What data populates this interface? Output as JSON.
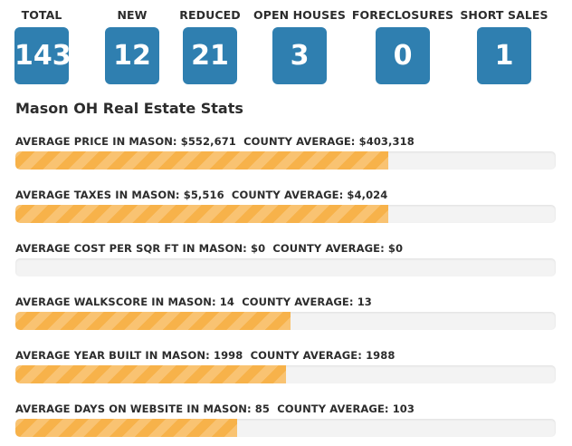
{
  "colors": {
    "stat_box": "#2f7fb0",
    "bar_fill": "#f7b24a",
    "bar_track": "#f3f3f3"
  },
  "stats": [
    {
      "label": "TOTAL",
      "value": "143"
    },
    {
      "label": "NEW",
      "value": "12"
    },
    {
      "label": "REDUCED",
      "value": "21"
    },
    {
      "label": "OPEN HOUSES",
      "value": "3"
    },
    {
      "label": "FORECLOSURES",
      "value": "0"
    },
    {
      "label": "SHORT SALES",
      "value": "1"
    }
  ],
  "section_title": "Mason OH Real Estate Stats",
  "metrics": [
    {
      "label": "AVERAGE PRICE IN MASON: $552,671",
      "county": "  COUNTY AVERAGE: $403,318",
      "fill_fraction": 0.69
    },
    {
      "label": "AVERAGE TAXES IN MASON: $5,516",
      "county": "  COUNTY AVERAGE: $4,024",
      "fill_fraction": 0.69
    },
    {
      "label": "AVERAGE COST PER SQR FT IN MASON: $0",
      "county": "  COUNTY AVERAGE: $0",
      "fill_fraction": 0
    },
    {
      "label": "AVERAGE WALKSCORE IN MASON: 14",
      "county": "  COUNTY AVERAGE: 13",
      "fill_fraction": 0.51
    },
    {
      "label": "AVERAGE YEAR BUILT IN MASON: 1998",
      "county": "  COUNTY AVERAGE: 1988",
      "fill_fraction": 0.5
    },
    {
      "label": "AVERAGE DAYS ON WEBSITE IN MASON: 85",
      "county": "  COUNTY AVERAGE: 103",
      "fill_fraction": 0.41
    }
  ]
}
